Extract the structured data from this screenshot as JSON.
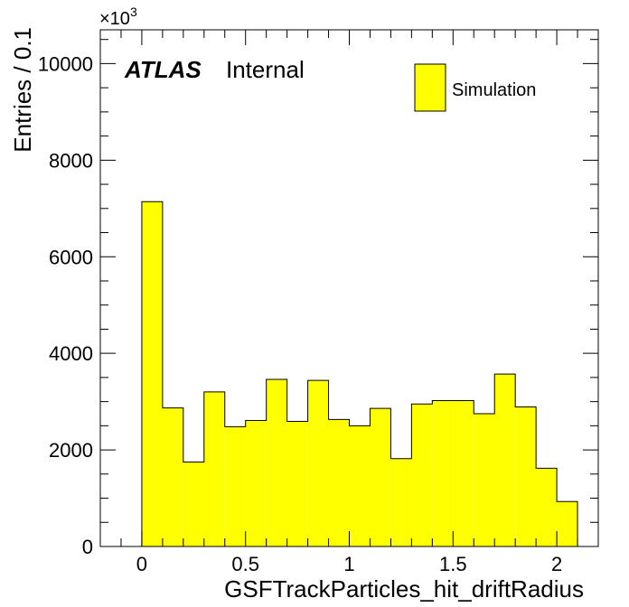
{
  "chart_data": {
    "type": "bar",
    "histogram": true,
    "bin_edges": [
      0.0,
      0.1,
      0.2,
      0.3,
      0.4,
      0.5,
      0.6,
      0.7,
      0.8,
      0.9,
      1.0,
      1.1,
      1.2,
      1.3,
      1.4,
      1.5,
      1.6,
      1.7,
      1.8,
      1.9,
      2.0,
      2.1
    ],
    "values": [
      7140,
      2870,
      1750,
      3200,
      2480,
      2610,
      3460,
      2590,
      3440,
      2630,
      2500,
      2860,
      1820,
      2950,
      3020,
      3020,
      2750,
      3570,
      2890,
      1620,
      930
    ],
    "xlabel": "GSFTrackParticles_hit_driftRadius",
    "ylabel": "Entries / 0.1",
    "y_multiplier": "×10",
    "y_multiplier_exp": "3",
    "xlim": [
      -0.2,
      2.2
    ],
    "ylim": [
      0,
      10700
    ],
    "x_ticks": [
      0,
      0.5,
      1,
      1.5,
      2
    ],
    "x_tick_labels": [
      "0",
      "0.5",
      "1",
      "1.5",
      "2"
    ],
    "y_ticks": [
      0,
      2000,
      4000,
      6000,
      8000,
      10000
    ],
    "y_tick_labels": [
      "0",
      "2000",
      "4000",
      "6000",
      "8000",
      "10000"
    ],
    "x_minor_step": 0.1,
    "y_minor_step": 500,
    "fill_color": "#ffff00",
    "line_color": "#000000",
    "grid": false,
    "legend": {
      "placement": "top-right",
      "entries": [
        {
          "name": "Simulation",
          "color": "#ffff00"
        }
      ]
    },
    "atlas_label": "ATLAS",
    "status_label": "Internal"
  }
}
